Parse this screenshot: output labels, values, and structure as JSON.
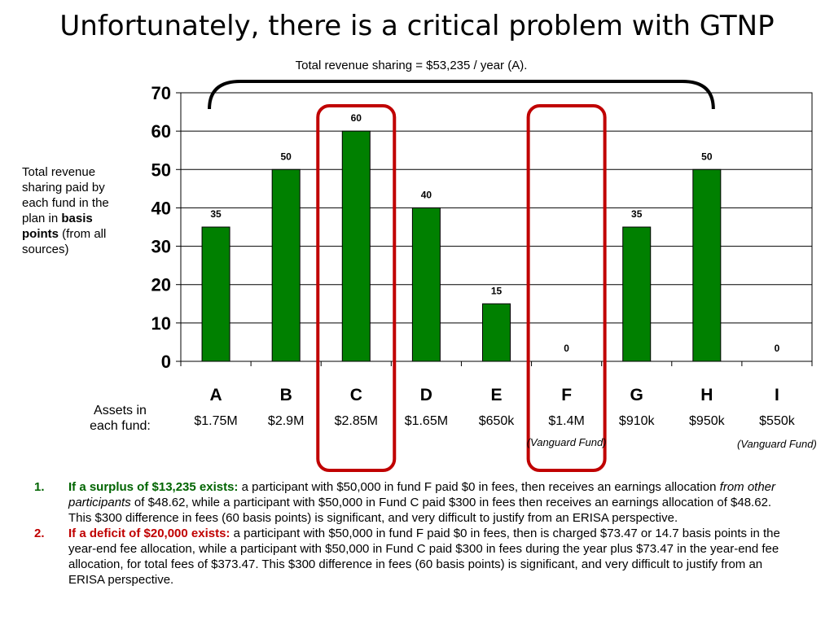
{
  "title": "Unfortunately, there is a critical problem with GTNP",
  "subtitle": "Total revenue sharing = $53,235 / year (A).",
  "ylabel_parts": {
    "before": "Total revenue sharing paid by each fund in the plan in",
    "bold": "basis points",
    "after": "(from all sources)"
  },
  "assets_label": "Assets in each fund:",
  "colors": {
    "bar": "#008000",
    "highlight": "#c00000",
    "surplus": "#006400",
    "deficit": "#c00000"
  },
  "chart_data": {
    "type": "bar",
    "title": "Total revenue sharing = $53,235 / year (A).",
    "ylabel": "Total revenue sharing paid by each fund in the plan in basis points (from all sources)",
    "categories": [
      "A",
      "B",
      "C",
      "D",
      "E",
      "F",
      "G",
      "H",
      "I"
    ],
    "values": [
      35,
      50,
      60,
      40,
      15,
      0,
      35,
      50,
      0
    ],
    "ylim": [
      0,
      70
    ],
    "yticks": [
      0,
      10,
      20,
      30,
      40,
      50,
      60,
      70
    ],
    "grid": true,
    "highlighted_categories": [
      "C",
      "F"
    ],
    "bracket_span": [
      "A",
      "H"
    ]
  },
  "assets": [
    "$1.75M",
    "$2.9M",
    "$2.85M",
    "$1.65M",
    "$650k",
    "$1.4M",
    "$910k",
    "$950k",
    "$550k"
  ],
  "fund_notes": {
    "F": "(Vanguard Fund)",
    "I": "(Vanguard Fund)"
  },
  "notes": [
    {
      "num": "1.",
      "lead": "If a surplus of $13,235 exists:",
      "text_a": " a participant with $50,000 in fund F paid $0 in fees, then receives an earnings allocation ",
      "italic": "from other participants",
      "text_b": " of $48.62, while a participant with $50,000 in Fund C paid $300 in fees then receives an earnings allocation of $48.62. This $300 difference in fees (60 basis points) is significant, and very difficult to justify from an ERISA perspective."
    },
    {
      "num": "2.",
      "lead": "If a deficit of $20,000 exists:",
      "text": " a participant with $50,000 in fund F paid $0 in fees, then is charged $73.47 or 14.7 basis points in the year-end fee allocation, while a participant with $50,000 in Fund C paid $300 in fees during the year plus $73.47 in the year-end fee allocation, for total fees of $373.47. This $300 difference in fees (60 basis points) is significant, and very difficult to justify from an ERISA perspective."
    }
  ]
}
